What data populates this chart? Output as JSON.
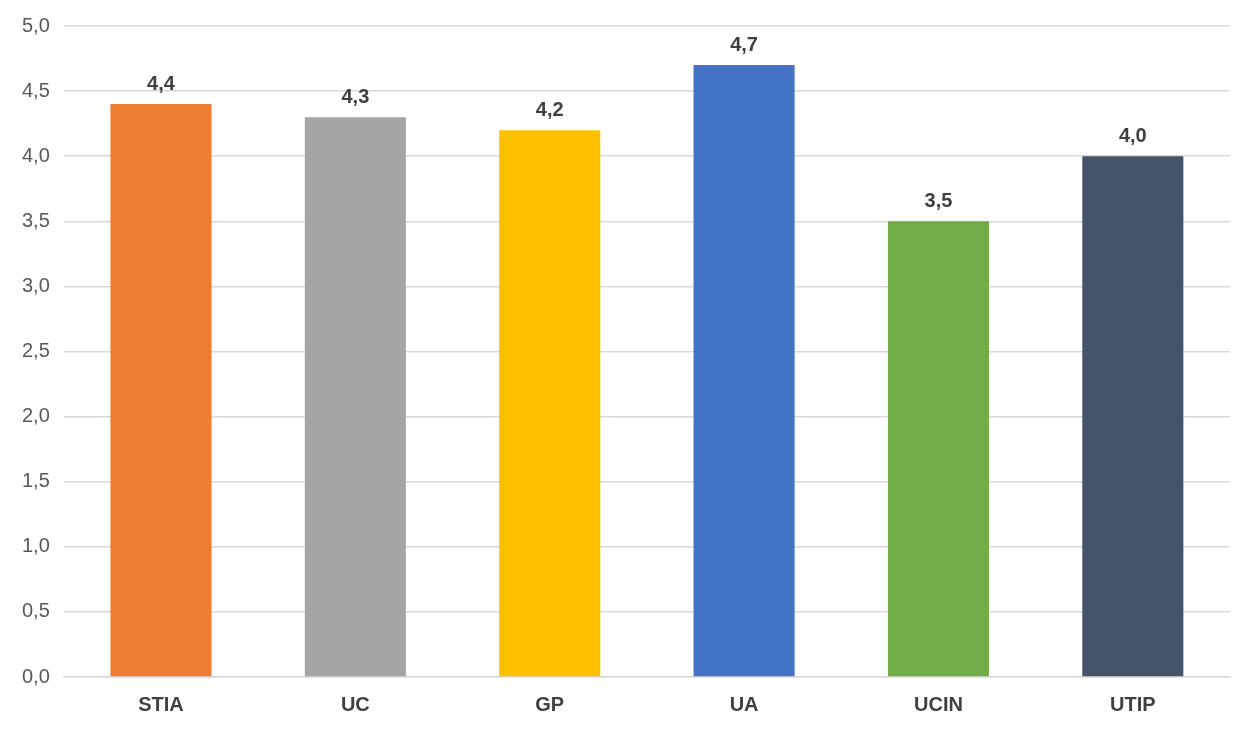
{
  "chart_data": {
    "type": "bar",
    "categories": [
      "STIA",
      "UC",
      "GP",
      "UA",
      "UCIN",
      "UTIP"
    ],
    "values": [
      4.4,
      4.3,
      4.2,
      4.7,
      3.5,
      4.0
    ],
    "colors": [
      "#ed7d31",
      "#a5a5a5",
      "#ffc000",
      "#4472c4",
      "#70ad47",
      "#44546a"
    ],
    "value_labels": [
      "4,4",
      "4,3",
      "4,2",
      "4,7",
      "3,5",
      "4,0"
    ],
    "ylim": [
      0,
      5
    ],
    "yticks": [
      {
        "value": 0,
        "label": "0,0"
      },
      {
        "value": 0.5,
        "label": "0,5"
      },
      {
        "value": 1,
        "label": "1,0"
      },
      {
        "value": 1.5,
        "label": "1,5"
      },
      {
        "value": 2,
        "label": "2,0"
      },
      {
        "value": 2.5,
        "label": "2,5"
      },
      {
        "value": 3,
        "label": "3,0"
      },
      {
        "value": 3.5,
        "label": "3,5"
      },
      {
        "value": 4,
        "label": "4,0"
      },
      {
        "value": 4.5,
        "label": "4,5"
      },
      {
        "value": 5,
        "label": "5,0"
      }
    ],
    "grid": "y",
    "legend": false
  }
}
